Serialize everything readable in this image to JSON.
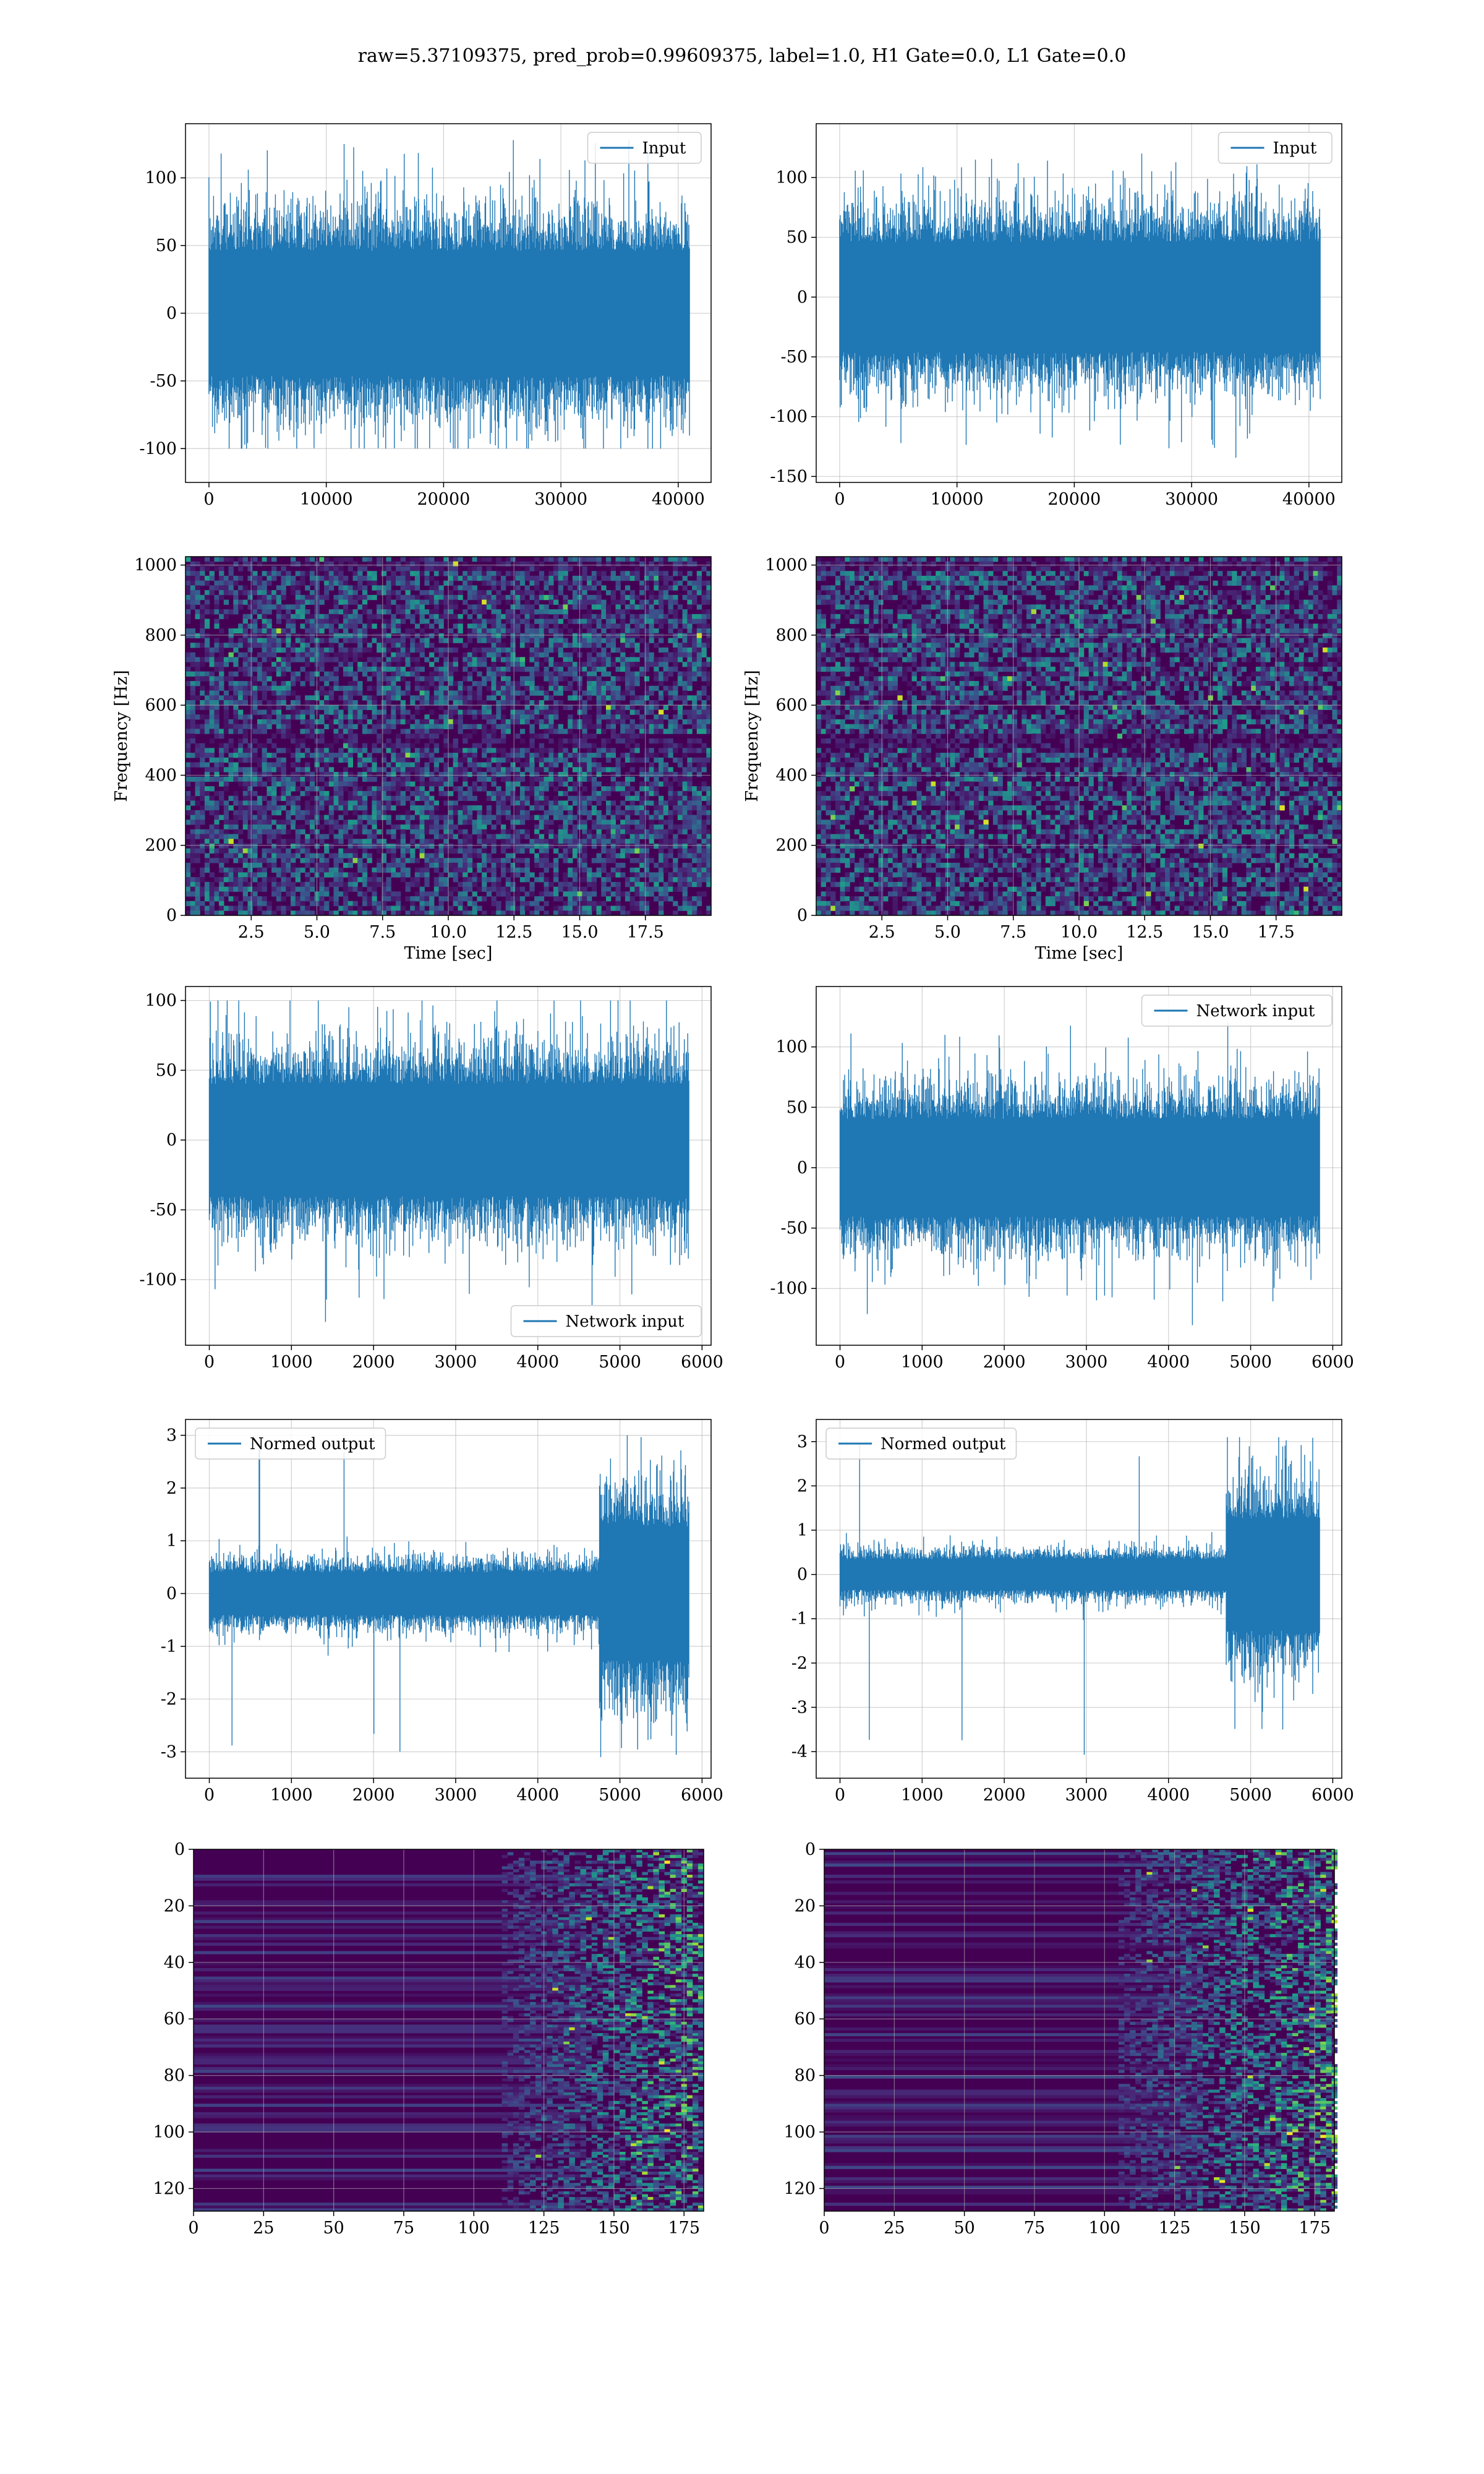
{
  "figure": {
    "suptitle": "raw=5.37109375, pred_prob=0.99609375, label=1.0, H1 Gate=0.0, L1 Gate=0.0"
  },
  "colors": {
    "line": "#1f77b4",
    "grid": "#b0b0b0",
    "viridis_low": "#440154",
    "viridis_mid": "#21918c",
    "viridis_high": "#fde725"
  },
  "chart_data": [
    {
      "id": "h1-input",
      "type": "line",
      "title": "",
      "xlabel": "",
      "ylabel": "",
      "xlim": [
        -2000,
        42800
      ],
      "ylim": [
        -125,
        140
      ],
      "xticks": [
        0,
        10000,
        20000,
        30000,
        40000
      ],
      "yticks": [
        -100,
        -50,
        0,
        50,
        100
      ],
      "grid": true,
      "legend": {
        "position": "top-right",
        "entries": [
          {
            "label": "Input"
          }
        ]
      },
      "series": [
        {
          "name": "Input",
          "n_points": 40960,
          "x_range": [
            0,
            40960
          ],
          "core_amplitude": 40,
          "envelope_y": [
            -100,
            128
          ],
          "color": "#1f77b4"
        }
      ]
    },
    {
      "id": "l1-input",
      "type": "line",
      "title": "",
      "xlabel": "",
      "ylabel": "",
      "xlim": [
        -2000,
        42800
      ],
      "ylim": [
        -155,
        145
      ],
      "xticks": [
        0,
        10000,
        20000,
        30000,
        40000
      ],
      "yticks": [
        -150,
        -100,
        -50,
        0,
        50,
        100
      ],
      "grid": true,
      "legend": {
        "position": "top-right",
        "entries": [
          {
            "label": "Input"
          }
        ]
      },
      "series": [
        {
          "name": "Input",
          "n_points": 40960,
          "x_range": [
            0,
            40960
          ],
          "core_amplitude": 40,
          "envelope_y": [
            -140,
            122
          ],
          "color": "#1f77b4"
        }
      ]
    },
    {
      "id": "h1-spectrogram",
      "type": "heatmap",
      "title": "",
      "xlabel": "Time [sec]",
      "ylabel": "Frequency [Hz]",
      "xlim": [
        0,
        20
      ],
      "ylim": [
        0,
        1024
      ],
      "xticks": [
        2.5,
        5.0,
        7.5,
        10.0,
        12.5,
        15.0,
        17.5
      ],
      "xtick_labels": [
        "2.5",
        "5.0",
        "7.5",
        "10.0",
        "12.5",
        "15.0",
        "17.5"
      ],
      "yticks": [
        0,
        200,
        400,
        600,
        800,
        1000
      ],
      "grid": true,
      "colormap": "viridis",
      "notes": "dark band near 500 Hz and near 1000 Hz"
    },
    {
      "id": "l1-spectrogram",
      "type": "heatmap",
      "title": "",
      "xlabel": "Time [sec]",
      "ylabel": "Frequency [Hz]",
      "xlim": [
        0,
        20
      ],
      "ylim": [
        0,
        1024
      ],
      "xticks": [
        2.5,
        5.0,
        7.5,
        10.0,
        12.5,
        15.0,
        17.5
      ],
      "xtick_labels": [
        "2.5",
        "5.0",
        "7.5",
        "10.0",
        "12.5",
        "15.0",
        "17.5"
      ],
      "yticks": [
        0,
        200,
        400,
        600,
        800,
        1000
      ],
      "grid": true,
      "colormap": "viridis",
      "notes": "dark band near 500 Hz"
    },
    {
      "id": "h1-network-input",
      "type": "line",
      "title": "",
      "xlabel": "",
      "ylabel": "",
      "xlim": [
        -290,
        6110
      ],
      "ylim": [
        -147,
        110
      ],
      "xticks": [
        0,
        1000,
        2000,
        3000,
        4000,
        5000,
        6000
      ],
      "yticks": [
        -100,
        -50,
        0,
        50,
        100
      ],
      "grid": true,
      "legend": {
        "position": "bottom-right",
        "entries": [
          {
            "label": "Network input"
          }
        ]
      },
      "series": [
        {
          "name": "Network input",
          "n_points": 5840,
          "x_range": [
            0,
            5840
          ],
          "core_amplitude": 35,
          "envelope_y": [
            -135,
            100
          ],
          "color": "#1f77b4"
        }
      ]
    },
    {
      "id": "l1-network-input",
      "type": "line",
      "title": "",
      "xlabel": "",
      "ylabel": "",
      "xlim": [
        -290,
        6110
      ],
      "ylim": [
        -147,
        150
      ],
      "xticks": [
        0,
        1000,
        2000,
        3000,
        4000,
        5000,
        6000
      ],
      "yticks": [
        -100,
        -50,
        0,
        50,
        100
      ],
      "grid": true,
      "legend": {
        "position": "top-right",
        "entries": [
          {
            "label": "Network input"
          }
        ]
      },
      "series": [
        {
          "name": "Network input",
          "n_points": 5840,
          "x_range": [
            0,
            5840
          ],
          "core_amplitude": 35,
          "envelope_y": [
            -135,
            124
          ],
          "color": "#1f77b4"
        }
      ]
    },
    {
      "id": "h1-normed-output",
      "type": "line",
      "title": "",
      "xlabel": "",
      "ylabel": "",
      "xlim": [
        -290,
        6110
      ],
      "ylim": [
        -3.5,
        3.3
      ],
      "xticks": [
        0,
        1000,
        2000,
        3000,
        4000,
        5000,
        6000
      ],
      "yticks": [
        -3,
        -2,
        -1,
        0,
        1,
        2,
        3
      ],
      "grid": true,
      "legend": {
        "position": "top-left",
        "entries": [
          {
            "label": "Normed output"
          }
        ]
      },
      "series": [
        {
          "name": "Normed output",
          "n_points": 5840,
          "x_range": [
            0,
            5840
          ],
          "core_amplitude": 0.35,
          "burst_start_x": 4750,
          "burst_amplitude": 1.1,
          "envelope_y": [
            -3.1,
            3.0
          ],
          "color": "#1f77b4"
        }
      ]
    },
    {
      "id": "l1-normed-output",
      "type": "line",
      "title": "",
      "xlabel": "",
      "ylabel": "",
      "xlim": [
        -290,
        6110
      ],
      "ylim": [
        -4.6,
        3.5
      ],
      "xticks": [
        0,
        1000,
        2000,
        3000,
        4000,
        5000,
        6000
      ],
      "yticks": [
        -4,
        -3,
        -2,
        -1,
        0,
        1,
        2,
        3
      ],
      "grid": true,
      "legend": {
        "position": "top-left",
        "entries": [
          {
            "label": "Normed output"
          }
        ]
      },
      "series": [
        {
          "name": "Normed output",
          "n_points": 5840,
          "x_range": [
            0,
            5840
          ],
          "core_amplitude": 0.3,
          "burst_start_x": 4700,
          "burst_amplitude": 1.1,
          "envelope_y": [
            -4.2,
            3.1
          ],
          "color": "#1f77b4"
        }
      ]
    },
    {
      "id": "h1-features",
      "type": "heatmap",
      "title": "",
      "xlabel": "",
      "ylabel": "",
      "xlim": [
        0,
        182
      ],
      "ylim": [
        128,
        0
      ],
      "xticks": [
        0,
        25,
        50,
        75,
        100,
        125,
        150,
        175
      ],
      "yticks": [
        0,
        20,
        40,
        60,
        80,
        100,
        120
      ],
      "grid": true,
      "colormap": "viridis",
      "notes": "activity increases toward columns 140-182"
    },
    {
      "id": "l1-features",
      "type": "heatmap",
      "title": "",
      "xlabel": "",
      "ylabel": "",
      "xlim": [
        0,
        182
      ],
      "ylim": [
        128,
        0
      ],
      "xticks": [
        0,
        25,
        50,
        75,
        100,
        125,
        150,
        175
      ],
      "yticks": [
        0,
        20,
        40,
        60,
        80,
        100,
        120
      ],
      "grid": true,
      "colormap": "viridis",
      "notes": "activity increases toward columns 135-180"
    }
  ]
}
